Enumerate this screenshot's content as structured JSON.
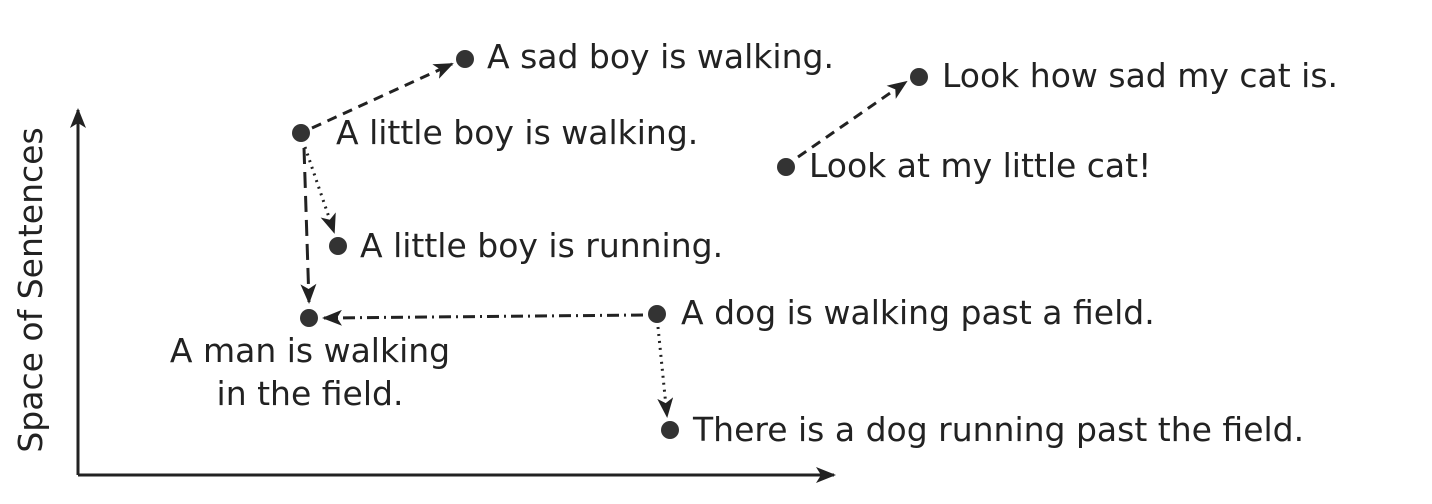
{
  "axis": {
    "y_label": "Space of Sentences",
    "color": "#222222"
  },
  "sentences": {
    "sad_boy": "A sad boy is walking.",
    "little_boy": "A little boy is walking.",
    "little_boy_running": "A little boy is running.",
    "man_line1": "A man is walking",
    "man_line2": "in the field.",
    "dog_walking": "A dog is walking past a field.",
    "dog_running": "There is a dog running past the field.",
    "little_cat": "Look at my little cat!",
    "sad_cat": "Look how sad my cat is."
  },
  "relations": [
    {
      "from": "little_boy",
      "to": "sad_boy",
      "style": "dashed"
    },
    {
      "from": "little_boy",
      "to": "little_boy_running",
      "style": "dotted"
    },
    {
      "from": "little_boy",
      "to": "man",
      "style": "long-dashed"
    },
    {
      "from": "dog_walking",
      "to": "man",
      "style": "dash-dot"
    },
    {
      "from": "dog_walking",
      "to": "dog_running",
      "style": "dotted"
    },
    {
      "from": "little_cat",
      "to": "sad_cat",
      "style": "dashed"
    }
  ],
  "colors": {
    "ink": "#222222",
    "dot": "#333333"
  }
}
